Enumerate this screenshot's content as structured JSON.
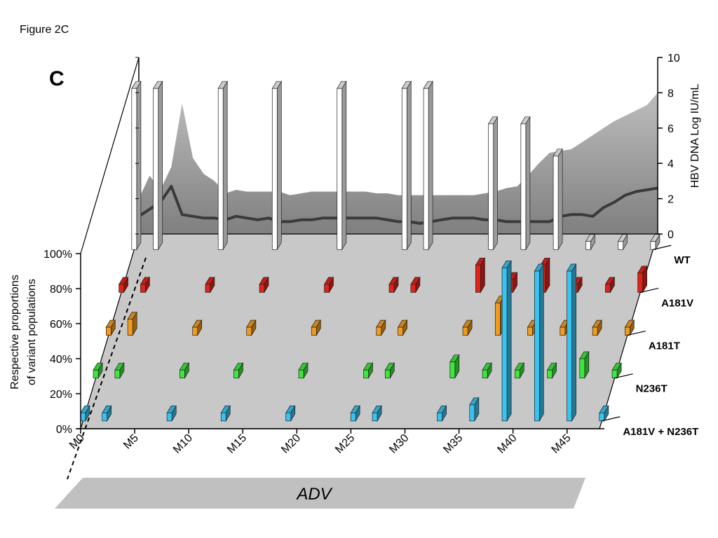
{
  "figure_label": "Figure 2C",
  "panel_label": "C",
  "therapy": {
    "label": "ADV",
    "from_month": 0,
    "to_month": 45
  },
  "colors": {
    "WT": "#ffffff",
    "A181V": "#e32119",
    "A181T": "#f29b1c",
    "N236T": "#3ce83c",
    "A181V + N236T": "#39c3f0",
    "floor": "#c8c8c8",
    "load_area": "#909090",
    "load_line": "#3a3a3a"
  },
  "chart_data": [
    {
      "type": "bar",
      "title": "",
      "xlabel": "",
      "ylabel": "Respective proportions\nof variant populations",
      "ylim": [
        0,
        100
      ],
      "y_ticks": [
        "0%",
        "20%",
        "40%",
        "60%",
        "80%",
        "100%"
      ],
      "x_tick_labels": [
        "M0",
        "M5",
        "M10",
        "M15",
        "M20",
        "M25",
        "M30",
        "M35",
        "M40",
        "M45"
      ],
      "x_ticks": [
        0,
        5,
        10,
        15,
        20,
        25,
        30,
        35,
        40,
        45
      ],
      "sample_months": [
        0,
        2,
        8,
        13,
        19,
        25,
        27,
        33,
        36,
        39,
        42,
        45,
        48
      ],
      "series": [
        {
          "name": "WT",
          "values": [
            100,
            100,
            100,
            100,
            100,
            100,
            100,
            78,
            78,
            58,
            5,
            5,
            5
          ]
        },
        {
          "name": "A181V",
          "values": [
            5,
            5,
            5,
            5,
            5,
            5,
            5,
            17,
            8,
            17,
            5,
            5,
            12
          ]
        },
        {
          "name": "A181T",
          "values": [
            5,
            10,
            5,
            5,
            5,
            5,
            5,
            5,
            20,
            5,
            5,
            5,
            5
          ]
        },
        {
          "name": "N236T",
          "values": [
            5,
            5,
            5,
            5,
            5,
            5,
            5,
            10,
            5,
            5,
            5,
            12,
            5
          ]
        },
        {
          "name": "A181V + N236T",
          "values": [
            5,
            5,
            5,
            5,
            5,
            5,
            5,
            5,
            10,
            95,
            93,
            93,
            5
          ]
        }
      ]
    },
    {
      "type": "area",
      "title": "",
      "xlabel": "",
      "ylabel": "HBV DNA Log IU/mL",
      "ylim": [
        0,
        10
      ],
      "y_ticks": [
        "0",
        "2",
        "4",
        "6",
        "8",
        "10"
      ],
      "series": [
        {
          "name": "",
          "x": [
            0,
            1,
            2,
            3,
            4,
            5,
            6,
            7,
            8,
            9,
            10,
            11,
            12,
            13,
            14,
            15,
            16,
            17,
            18,
            19,
            20,
            21,
            22,
            23,
            24,
            25,
            26,
            27,
            28,
            29,
            30,
            31,
            32,
            33,
            34,
            35,
            36,
            37,
            38,
            39,
            40,
            41,
            42,
            43,
            44,
            45,
            46,
            47,
            48
          ],
          "values": [
            2.0,
            3.3,
            2.5,
            3.8,
            7.4,
            4.3,
            3.4,
            3.0,
            2.3,
            2.5,
            2.4,
            2.4,
            2.4,
            2.4,
            2.2,
            2.3,
            2.4,
            2.4,
            2.4,
            2.4,
            2.4,
            2.4,
            2.3,
            2.3,
            2.2,
            2.2,
            2.2,
            2.2,
            2.2,
            2.2,
            2.2,
            2.2,
            2.3,
            2.4,
            2.6,
            2.7,
            3.3,
            4.0,
            4.6,
            4.7,
            4.8,
            5.2,
            5.6,
            6.0,
            6.4,
            6.7,
            7.0,
            7.3,
            8.0
          ]
        },
        {
          "name": "",
          "x": [
            0,
            1,
            2,
            3,
            4,
            5,
            6,
            7,
            8,
            9,
            10,
            11,
            12,
            13,
            14,
            15,
            16,
            17,
            18,
            19,
            20,
            21,
            22,
            23,
            24,
            25,
            26,
            27,
            28,
            29,
            30,
            31,
            32,
            33,
            34,
            35,
            36,
            37,
            38,
            39,
            40,
            41,
            42,
            43,
            44,
            45,
            46,
            47,
            48
          ],
          "values": [
            1.0,
            1.4,
            1.8,
            2.7,
            1.1,
            1.0,
            0.9,
            0.9,
            0.8,
            1.0,
            0.9,
            0.8,
            0.9,
            0.7,
            0.7,
            0.8,
            0.8,
            0.9,
            0.9,
            0.9,
            0.9,
            0.9,
            0.9,
            0.8,
            0.7,
            0.7,
            0.6,
            0.7,
            0.8,
            0.9,
            0.9,
            0.9,
            0.8,
            0.8,
            0.7,
            0.7,
            0.7,
            0.7,
            0.7,
            1.0,
            1.1,
            1.1,
            1.0,
            1.5,
            1.8,
            2.2,
            2.4,
            2.5,
            2.6
          ]
        }
      ]
    }
  ]
}
